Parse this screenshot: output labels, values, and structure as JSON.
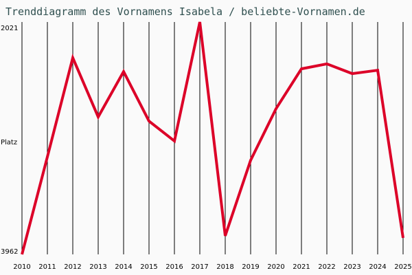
{
  "title": "Trenddiagramm des Vornamens Isabela / beliebte-Vornamen.de",
  "y_axis": {
    "top_label": "2021",
    "mid_label": "Platz",
    "bottom_label": "3962"
  },
  "colors": {
    "line": "#dc0028",
    "grid": "#000000",
    "title": "#2f4f4f"
  },
  "chart_data": {
    "type": "line",
    "title": "Trenddiagramm des Vornamens Isabela / beliebte-Vornamen.de",
    "xlabel": "",
    "ylabel": "Platz",
    "ylim": [
      3962,
      2021
    ],
    "y_inverted": true,
    "grid": "vertical",
    "categories": [
      "2010",
      "2011",
      "2012",
      "2013",
      "2014",
      "2015",
      "2016",
      "2017",
      "2018",
      "2019",
      "2020",
      "2021",
      "2022",
      "2023",
      "2024",
      "2025"
    ],
    "series": [
      {
        "name": "Isabela",
        "values": [
          3962,
          3147,
          2320,
          2814,
          2435,
          2849,
          3015,
          2021,
          3807,
          3176,
          2745,
          2412,
          2371,
          2452,
          2424,
          3824
        ]
      }
    ]
  }
}
